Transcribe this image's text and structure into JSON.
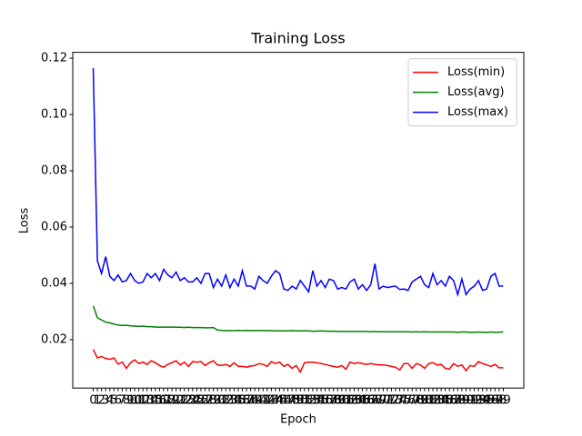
{
  "chart_data": {
    "type": "line",
    "title": "Training Loss",
    "xlabel": "Epoch",
    "ylabel": "Loss",
    "categories": [
      "0",
      "1",
      "2",
      "3",
      "4",
      "5",
      "6",
      "7",
      "8",
      "9",
      "10",
      "11",
      "12",
      "13",
      "14",
      "15",
      "16",
      "17",
      "18",
      "19",
      "20",
      "21",
      "22",
      "23",
      "24",
      "25",
      "26",
      "27",
      "28",
      "29",
      "30",
      "31",
      "32",
      "33",
      "34",
      "35",
      "36",
      "37",
      "38",
      "39",
      "40",
      "41",
      "42",
      "43",
      "44",
      "45",
      "46",
      "47",
      "48",
      "49",
      "50",
      "51",
      "52",
      "53",
      "54",
      "55",
      "56",
      "57",
      "58",
      "59",
      "60",
      "61",
      "62",
      "63",
      "64",
      "65",
      "66",
      "67",
      "68",
      "69",
      "70",
      "71",
      "72",
      "73",
      "74",
      "75",
      "76",
      "77",
      "78",
      "79",
      "80",
      "81",
      "82",
      "83",
      "84",
      "85",
      "86",
      "87",
      "88",
      "89",
      "90",
      "91",
      "92",
      "93",
      "94",
      "95",
      "96",
      "97",
      "98",
      "99"
    ],
    "series": [
      {
        "name": "Loss(min)",
        "color": "#ff0000",
        "values": [
          0.0165,
          0.0135,
          0.014,
          0.0133,
          0.013,
          0.0135,
          0.0113,
          0.012,
          0.0098,
          0.0118,
          0.0128,
          0.0115,
          0.012,
          0.0112,
          0.0125,
          0.0118,
          0.0108,
          0.0102,
          0.0112,
          0.0118,
          0.0125,
          0.011,
          0.012,
          0.0105,
          0.0122,
          0.012,
          0.0122,
          0.0108,
          0.0118,
          0.0125,
          0.011,
          0.0108,
          0.0112,
          0.0105,
          0.0118,
          0.0105,
          0.0105,
          0.0102,
          0.0106,
          0.0108,
          0.0115,
          0.0112,
          0.0105,
          0.0122,
          0.0115,
          0.012,
          0.0105,
          0.0112,
          0.0098,
          0.0108,
          0.0085,
          0.0118,
          0.012,
          0.012,
          0.0118,
          0.0115,
          0.0112,
          0.0108,
          0.0105,
          0.0102,
          0.0108,
          0.0095,
          0.012,
          0.0115,
          0.0118,
          0.0115,
          0.0112,
          0.0115,
          0.0112,
          0.011,
          0.011,
          0.0108,
          0.0105,
          0.0102,
          0.0092,
          0.0115,
          0.0115,
          0.0098,
          0.0115,
          0.011,
          0.0098,
          0.0115,
          0.0118,
          0.011,
          0.0112,
          0.0098,
          0.0095,
          0.0115,
          0.0105,
          0.011,
          0.009,
          0.0108,
          0.0105,
          0.0122,
          0.0115,
          0.011,
          0.0105,
          0.0112,
          0.01,
          0.01
        ]
      },
      {
        "name": "Loss(avg)",
        "color": "#008000",
        "values": [
          0.032,
          0.0278,
          0.027,
          0.0262,
          0.026,
          0.0255,
          0.0252,
          0.025,
          0.0251,
          0.0249,
          0.0248,
          0.0247,
          0.0248,
          0.0246,
          0.0246,
          0.0245,
          0.0244,
          0.0245,
          0.0244,
          0.0245,
          0.0244,
          0.0244,
          0.0243,
          0.0244,
          0.0243,
          0.0243,
          0.0243,
          0.0242,
          0.0242,
          0.0243,
          0.0234,
          0.0233,
          0.0232,
          0.0232,
          0.0232,
          0.0233,
          0.0232,
          0.0233,
          0.0232,
          0.0232,
          0.0233,
          0.0232,
          0.0232,
          0.0232,
          0.0231,
          0.0231,
          0.0231,
          0.0231,
          0.0232,
          0.0231,
          0.0231,
          0.0231,
          0.0231,
          0.023,
          0.023,
          0.0231,
          0.023,
          0.023,
          0.023,
          0.0229,
          0.0229,
          0.0229,
          0.0229,
          0.0229,
          0.0229,
          0.0229,
          0.0229,
          0.0228,
          0.0229,
          0.0228,
          0.0228,
          0.0228,
          0.0228,
          0.0228,
          0.0228,
          0.0228,
          0.0228,
          0.0227,
          0.0228,
          0.0227,
          0.0228,
          0.0227,
          0.0227,
          0.0227,
          0.0227,
          0.0227,
          0.0227,
          0.0227,
          0.0226,
          0.0227,
          0.0227,
          0.0226,
          0.0226,
          0.0227,
          0.0226,
          0.0226,
          0.0227,
          0.0226,
          0.0226,
          0.0228
        ]
      },
      {
        "name": "Loss(max)",
        "color": "#0000ff",
        "values": [
          0.1165,
          0.048,
          0.0435,
          0.0495,
          0.0425,
          0.041,
          0.043,
          0.0405,
          0.041,
          0.0435,
          0.041,
          0.04,
          0.0405,
          0.0435,
          0.042,
          0.0435,
          0.041,
          0.045,
          0.043,
          0.042,
          0.044,
          0.041,
          0.042,
          0.0405,
          0.0405,
          0.042,
          0.04,
          0.0435,
          0.0435,
          0.0385,
          0.0415,
          0.039,
          0.043,
          0.0385,
          0.0415,
          0.039,
          0.0445,
          0.039,
          0.039,
          0.038,
          0.0425,
          0.041,
          0.04,
          0.0425,
          0.0445,
          0.0435,
          0.038,
          0.0375,
          0.039,
          0.038,
          0.041,
          0.039,
          0.037,
          0.0445,
          0.039,
          0.041,
          0.0385,
          0.0415,
          0.041,
          0.038,
          0.0385,
          0.038,
          0.0405,
          0.0415,
          0.038,
          0.0395,
          0.0375,
          0.0395,
          0.047,
          0.038,
          0.039,
          0.0385,
          0.0388,
          0.039,
          0.0378,
          0.038,
          0.0375,
          0.0405,
          0.0415,
          0.0425,
          0.0395,
          0.0385,
          0.0435,
          0.0395,
          0.041,
          0.039,
          0.0425,
          0.041,
          0.036,
          0.0415,
          0.036,
          0.038,
          0.039,
          0.041,
          0.0375,
          0.038,
          0.0425,
          0.0435,
          0.039,
          0.039
        ]
      }
    ],
    "ylim": [
      0.0028,
      0.1221
    ],
    "yticks": [
      0.02,
      0.04,
      0.06,
      0.08,
      {
        "value": 0.1,
        "label": "0.10"
      },
      0.12
    ],
    "legend": "upper right",
    "grid": false
  }
}
